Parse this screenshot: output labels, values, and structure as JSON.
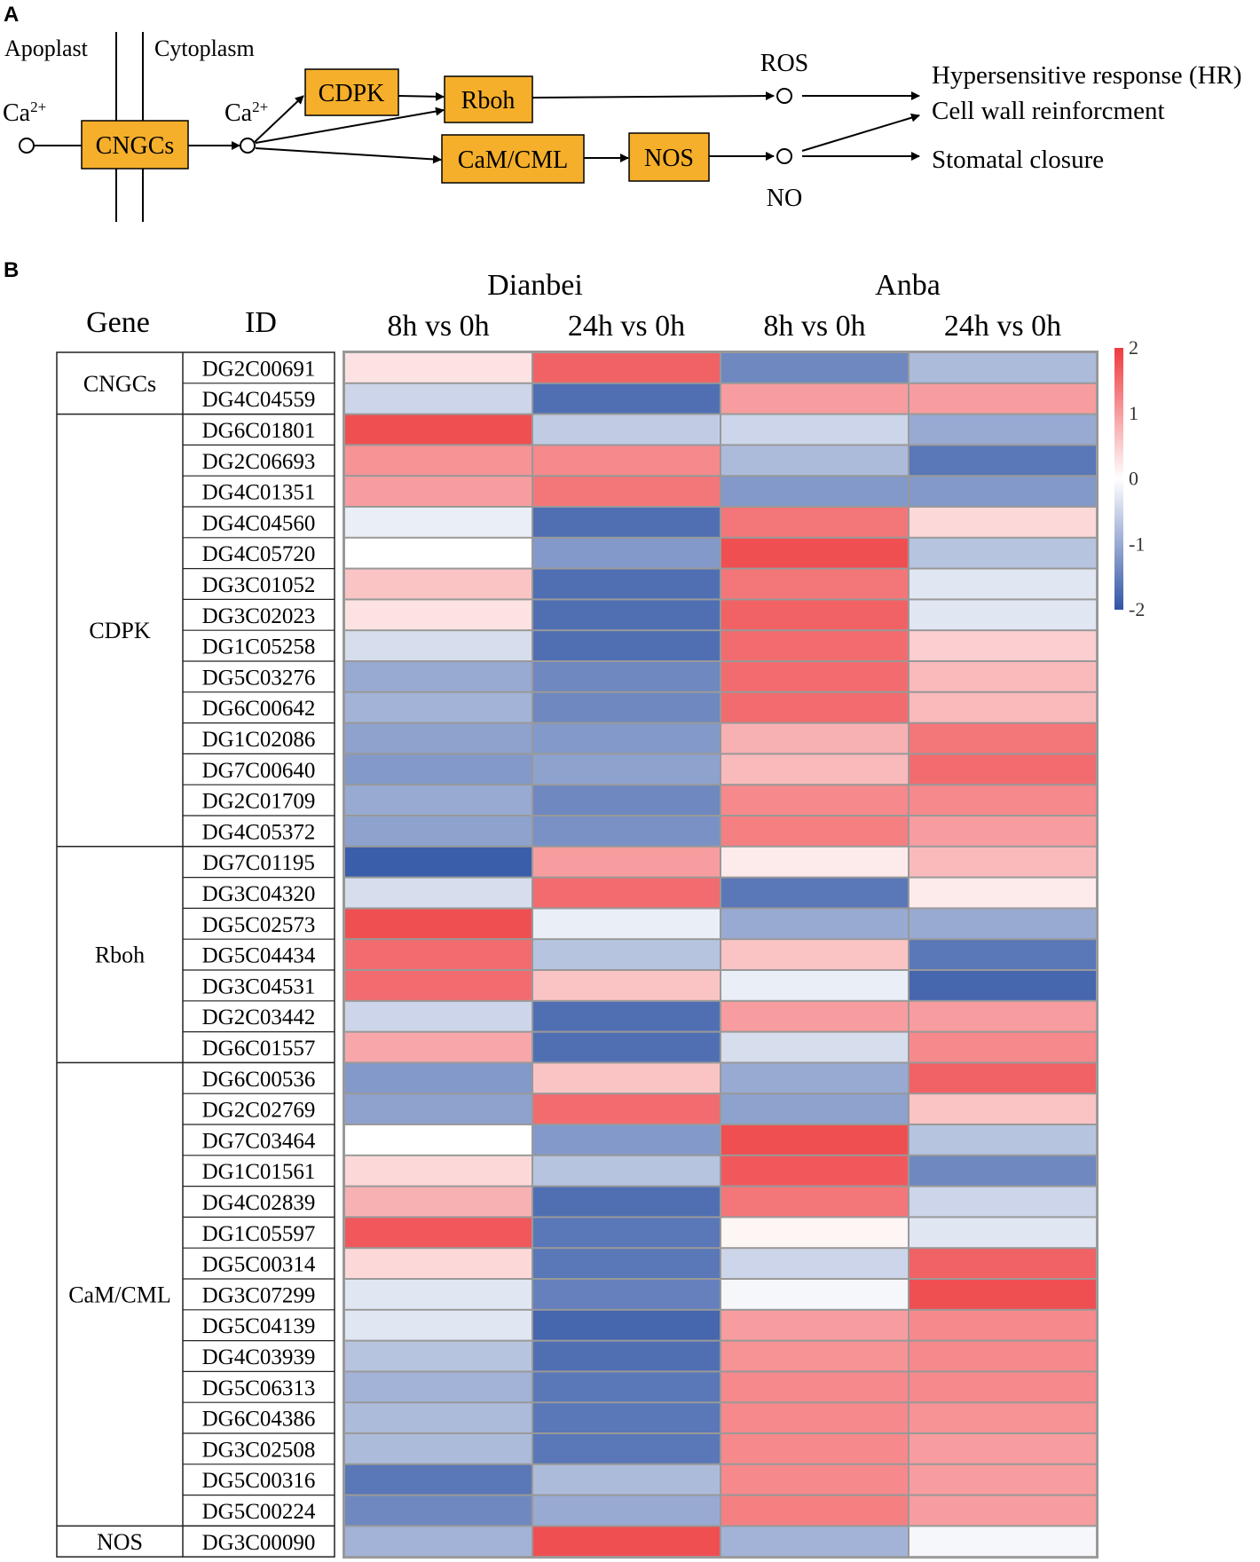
{
  "panel_a": {
    "label": "A",
    "compartments": {
      "apoplast": "Apoplast",
      "cytoplasm": "Cytoplasm"
    },
    "calcium": {
      "symbol": "Ca",
      "charge": "2+"
    },
    "boxes": {
      "cngcs": "CNGCs",
      "cdpk": "CDPK",
      "rboh": "Rboh",
      "cam": "CaM/CML",
      "nos": "NOS"
    },
    "signals": {
      "ros": "ROS",
      "no": "NO"
    },
    "outcomes": {
      "hr": "Hypersensitive response (HR)",
      "cell_wall": "Cell wall reinforcment",
      "stomatal": "Stomatal closure"
    },
    "box_color": "#F5AF2B"
  },
  "panel_b": {
    "label": "B",
    "gene_header": "Gene",
    "id_header": "ID",
    "groups_header": [
      {
        "name": "Dianbei"
      },
      {
        "name": "Anba"
      }
    ]
  },
  "chart_data": {
    "type": "heatmap",
    "title": "",
    "columns": [
      "8h vs 0h",
      "24h vs 0h",
      "8h vs 0h",
      "24h vs 0h"
    ],
    "column_groups": [
      "Dianbei",
      "Dianbei",
      "Anba",
      "Anba"
    ],
    "scale": {
      "min": -2,
      "max": 2,
      "ticks": [
        "2",
        "1",
        "0",
        "-1",
        "-2"
      ],
      "colors": {
        "low": "#3155A5",
        "mid": "#FFFFFF",
        "high": "#EE3B3F"
      }
    },
    "families": [
      {
        "name": "CNGCs",
        "count": 2
      },
      {
        "name": "CDPK",
        "count": 14
      },
      {
        "name": "Rboh",
        "count": 7
      },
      {
        "name": "CaM/CML",
        "count": 15
      },
      {
        "name": "NOS",
        "count": 1
      }
    ],
    "rows": [
      {
        "id": "DG2C00691",
        "values": [
          0.3,
          1.6,
          -1.4,
          -0.8
        ]
      },
      {
        "id": "DG4C04559",
        "values": [
          -0.5,
          -1.7,
          1.0,
          1.0
        ]
      },
      {
        "id": "DG6C01801",
        "values": [
          1.8,
          -0.6,
          -0.5,
          -1.0
        ]
      },
      {
        "id": "DG2C06693",
        "values": [
          1.1,
          1.2,
          -0.8,
          -1.6
        ]
      },
      {
        "id": "DG4C01351",
        "values": [
          1.0,
          1.4,
          -1.2,
          -1.2
        ]
      },
      {
        "id": "DG4C04560",
        "values": [
          -0.2,
          -1.7,
          1.4,
          0.4
        ]
      },
      {
        "id": "DG4C05720",
        "values": [
          0.0,
          -1.2,
          1.8,
          -0.7
        ]
      },
      {
        "id": "DG3C01052",
        "values": [
          0.6,
          -1.7,
          1.4,
          -0.3
        ]
      },
      {
        "id": "DG3C02023",
        "values": [
          0.3,
          -1.7,
          1.6,
          -0.3
        ]
      },
      {
        "id": "DG1C05258",
        "values": [
          -0.4,
          -1.7,
          1.5,
          0.5
        ]
      },
      {
        "id": "DG5C03276",
        "values": [
          -1.0,
          -1.4,
          1.5,
          0.7
        ]
      },
      {
        "id": "DG6C00642",
        "values": [
          -0.9,
          -1.4,
          1.5,
          0.7
        ]
      },
      {
        "id": "DG1C02086",
        "values": [
          -1.1,
          -1.2,
          0.8,
          1.4
        ]
      },
      {
        "id": "DG7C00640",
        "values": [
          -1.2,
          -1.1,
          0.7,
          1.5
        ]
      },
      {
        "id": "DG2C01709",
        "values": [
          -1.0,
          -1.4,
          1.2,
          1.2
        ]
      },
      {
        "id": "DG4C05372",
        "values": [
          -1.1,
          -1.3,
          1.3,
          1.0
        ]
      },
      {
        "id": "DG7C01195",
        "values": [
          -1.9,
          1.0,
          0.2,
          0.7
        ]
      },
      {
        "id": "DG3C04320",
        "values": [
          -0.4,
          1.5,
          -1.6,
          0.2
        ]
      },
      {
        "id": "DG5C02573",
        "values": [
          1.8,
          -0.2,
          -1.0,
          -1.0
        ]
      },
      {
        "id": "DG5C04434",
        "values": [
          1.5,
          -0.7,
          0.6,
          -1.6
        ]
      },
      {
        "id": "DG3C04531",
        "values": [
          1.5,
          0.6,
          -0.2,
          -1.8
        ]
      },
      {
        "id": "DG2C03442",
        "values": [
          -0.5,
          -1.7,
          1.0,
          1.0
        ]
      },
      {
        "id": "DG6C01557",
        "values": [
          0.9,
          -1.7,
          -0.4,
          1.2
        ]
      },
      {
        "id": "DG6C00536",
        "values": [
          -1.2,
          0.6,
          -1.0,
          1.6
        ]
      },
      {
        "id": "DG2C02769",
        "values": [
          -1.1,
          1.5,
          -1.1,
          0.6
        ]
      },
      {
        "id": "DG7C03464",
        "values": [
          0.0,
          -1.2,
          1.8,
          -0.7
        ]
      },
      {
        "id": "DG1C01561",
        "values": [
          0.4,
          -0.7,
          1.7,
          -1.4
        ]
      },
      {
        "id": "DG4C02839",
        "values": [
          0.8,
          -1.7,
          1.4,
          -0.5
        ]
      },
      {
        "id": "DG1C05597",
        "values": [
          1.7,
          -1.6,
          0.1,
          -0.3
        ]
      },
      {
        "id": "DG5C00314",
        "values": [
          0.4,
          -1.6,
          -0.5,
          1.6
        ]
      },
      {
        "id": "DG3C07299",
        "values": [
          -0.3,
          -1.5,
          -0.1,
          1.8
        ]
      },
      {
        "id": "DG5C04139",
        "values": [
          -0.3,
          -1.8,
          1.0,
          1.2
        ]
      },
      {
        "id": "DG4C03939",
        "values": [
          -0.7,
          -1.7,
          1.1,
          1.2
        ]
      },
      {
        "id": "DG5C06313",
        "values": [
          -0.9,
          -1.6,
          1.2,
          1.2
        ]
      },
      {
        "id": "DG6C04386",
        "values": [
          -0.8,
          -1.6,
          1.2,
          1.1
        ]
      },
      {
        "id": "DG3C02508",
        "values": [
          -0.8,
          -1.6,
          1.2,
          1.0
        ]
      },
      {
        "id": "DG5C00316",
        "values": [
          -1.6,
          -0.8,
          1.2,
          1.0
        ]
      },
      {
        "id": "DG5C00224",
        "values": [
          -1.4,
          -1.0,
          1.3,
          1.0
        ]
      },
      {
        "id": "DG3C00090",
        "values": [
          -0.9,
          1.8,
          -0.9,
          -0.1
        ]
      }
    ]
  }
}
